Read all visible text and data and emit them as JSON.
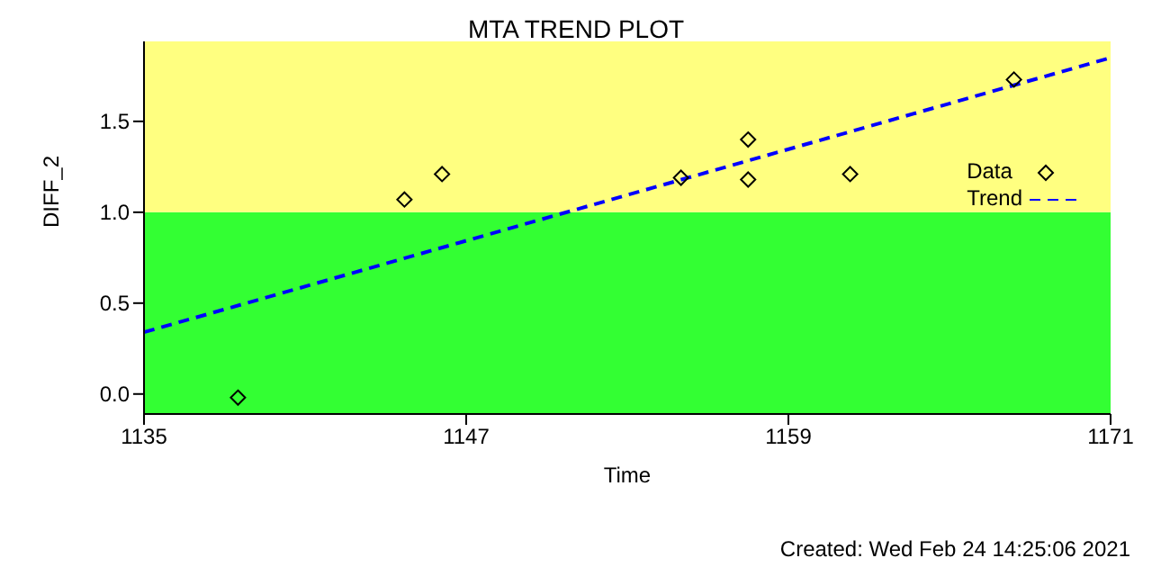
{
  "chart_data": {
    "type": "scatter",
    "title": "MTA TREND PLOT",
    "xlabel": "Time",
    "ylabel": "DIFF_2",
    "annotations": [
      "Created: Wed Feb 24 14:25:06 2021"
    ],
    "series": [
      {
        "name": "Data",
        "color": "#000000",
        "marker": "diamond",
        "x": [
          1138.5,
          1144.7,
          1146.1,
          1155.0,
          1157.5,
          1157.5,
          1161.3,
          1167.4
        ],
        "values": [
          -0.02,
          1.07,
          1.21,
          1.19,
          1.4,
          1.18,
          1.21,
          1.73
        ]
      },
      {
        "name": "Trend",
        "type": "line",
        "color": "#0000ff",
        "line_style": "dashed",
        "marker": "none",
        "x": [
          1135,
          1171
        ],
        "values": [
          0.34,
          1.85
        ]
      }
    ],
    "bands": [
      {
        "axis": "y",
        "from": -0.11,
        "to": 1.0,
        "color": "#33ff33"
      },
      {
        "axis": "y",
        "from": 1.0,
        "to": 1.94,
        "color": "#ffff80"
      }
    ],
    "xlim": [
      1135,
      1171
    ],
    "xticks": [
      1135,
      1147,
      1159,
      1171
    ],
    "ylim": [
      -0.11,
      1.94
    ],
    "yticks": [
      {
        "value": 0,
        "label": "0.0"
      },
      {
        "value": 0.5,
        "label": "0.5"
      },
      {
        "value": 1,
        "label": "1.0"
      },
      {
        "value": 1.5,
        "label": "1.5"
      }
    ],
    "legend": "top right"
  }
}
